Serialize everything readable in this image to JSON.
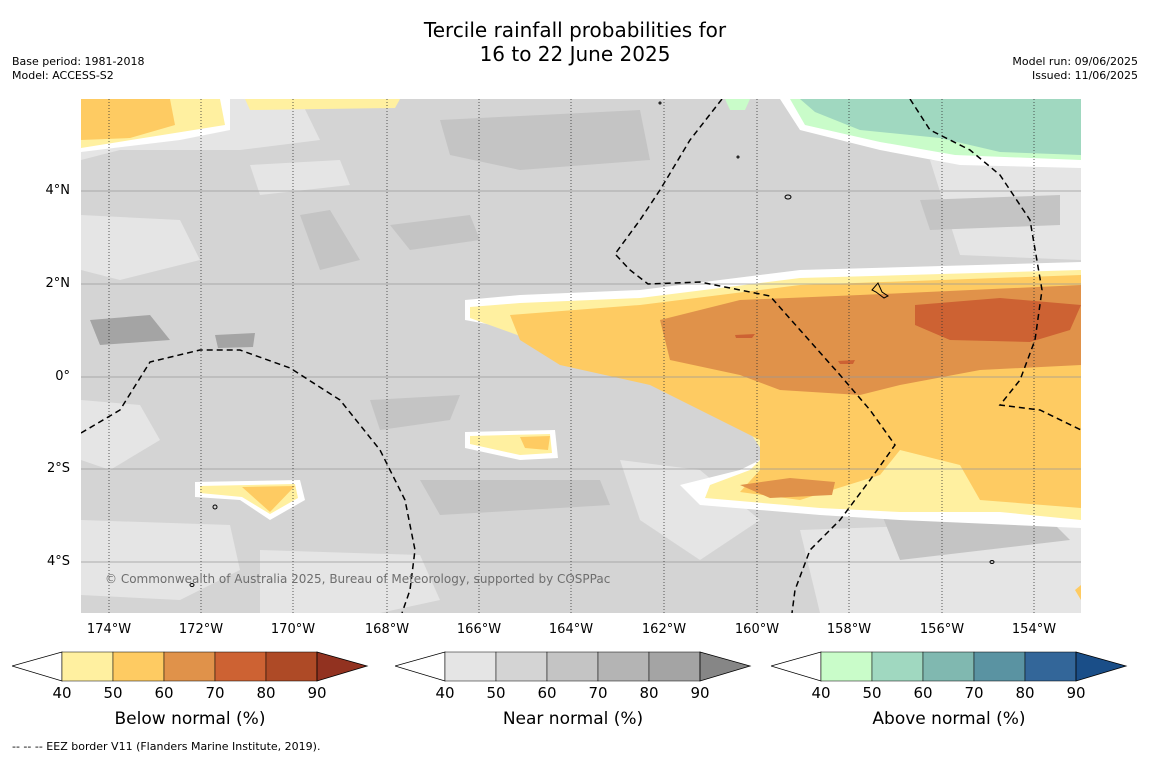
{
  "title_line1": "Tercile rainfall probabilities for",
  "title_line2": "16 to 22 June 2025",
  "base_period": "Base period: 1981-2018",
  "model": "Model: ACCESS-S2",
  "model_run": "Model run: 09/06/2025",
  "issued": "Issued: 11/06/2025",
  "copyright": "© Commonwealth of Australia 2025, Bureau of Meteorology, supported by COSPPac",
  "footer": "--  --  -- EEZ border V11 (Flanders Marine Institute, 2019).",
  "lat_labels": [
    "4°N",
    "2°N",
    "0°",
    "2°S",
    "4°S"
  ],
  "lon_labels": [
    "174°W",
    "172°W",
    "170°W",
    "168°W",
    "166°W",
    "164°W",
    "162°W",
    "160°W",
    "158°W",
    "156°W",
    "154°W"
  ],
  "colorbars": [
    {
      "title": "Below normal (%)",
      "ticks": [
        "40",
        "50",
        "60",
        "70",
        "80",
        "90"
      ],
      "colors": [
        "#fff0a0",
        "#fecb62",
        "#e0924a",
        "#cd6233",
        "#ae4a26",
        "#923220"
      ]
    },
    {
      "title": "Near normal (%)",
      "ticks": [
        "40",
        "50",
        "60",
        "70",
        "80",
        "90"
      ],
      "colors": [
        "#e5e5e5",
        "#d4d4d4",
        "#c4c4c4",
        "#b4b4b4",
        "#a4a4a4",
        "#868686"
      ]
    },
    {
      "title": "Above normal (%)",
      "ticks": [
        "40",
        "50",
        "60",
        "70",
        "80",
        "90"
      ],
      "colors": [
        "#c9fcc9",
        "#a0d8c0",
        "#80b8b0",
        "#5a93a2",
        "#336699",
        "#1a4e88"
      ]
    }
  ]
}
